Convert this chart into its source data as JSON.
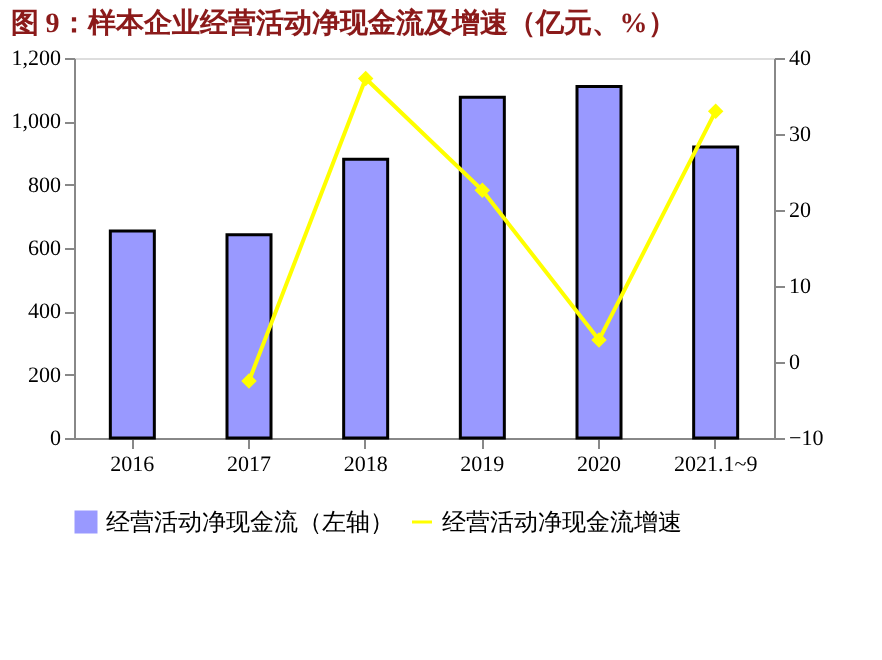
{
  "chart_data": {
    "type": "bar",
    "title": "图 9：样本企业经营活动净现金流及增速（亿元、%）",
    "categories": [
      "2016",
      "2017",
      "2018",
      "2019",
      "2020",
      "2021.1~9"
    ],
    "series": [
      {
        "name": "经营活动净现金流（左轴）",
        "color": "#9999ff",
        "values": [
          654,
          642,
          880,
          1076,
          1110,
          919
        ]
      },
      {
        "name": "经营活动净现金流增速",
        "type": "line",
        "axis": "y2",
        "color": "#ffff00",
        "marker": "diamond",
        "values": [
          null,
          -2.5,
          37.3,
          22.6,
          2.9,
          33.0
        ]
      }
    ],
    "ylim": [
      0,
      1200
    ],
    "yticks": [
      {
        "value": 0,
        "label": "0"
      },
      {
        "value": 200,
        "label": "200"
      },
      {
        "value": 400,
        "label": "400"
      },
      {
        "value": 600,
        "label": "600"
      },
      {
        "value": 800,
        "label": "800"
      },
      {
        "value": 1000,
        "label": "1,000"
      },
      {
        "value": 1200,
        "label": "1,200"
      }
    ],
    "y2lim": [
      -10,
      40
    ],
    "y2ticks": [
      -10,
      0,
      10,
      20,
      30,
      40
    ],
    "grid": false,
    "legend": "bottom"
  }
}
